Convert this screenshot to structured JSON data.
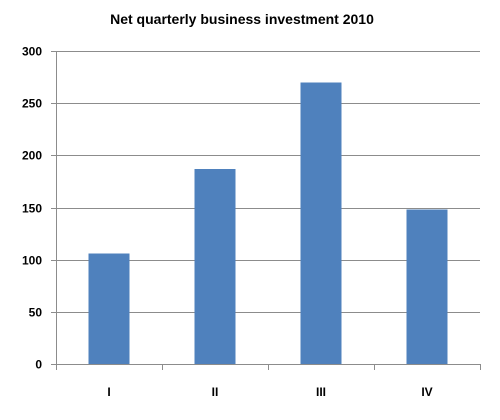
{
  "chart_data": {
    "type": "bar",
    "title": "Net quarterly business  investment 2010",
    "xlabel": "",
    "ylabel": "",
    "categories": [
      "I",
      "II",
      "III",
      "IV"
    ],
    "values": [
      106,
      187,
      270,
      148
    ],
    "ylim": [
      0,
      300
    ],
    "yticks": [
      0,
      50,
      100,
      150,
      200,
      250,
      300
    ],
    "grid": true,
    "legend": "none",
    "bar_color": "#4f81bd"
  }
}
